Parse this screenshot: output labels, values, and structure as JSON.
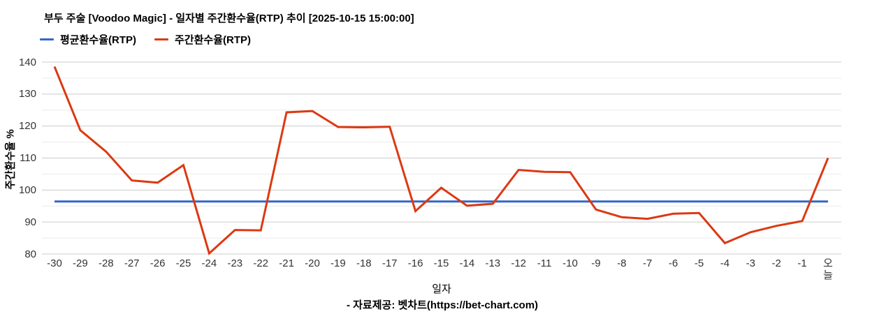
{
  "header": {
    "title": "부두 주술 [Voodoo Magic] - 일자별 주간환수율(RTP) 추이 [2025-10-15 15:00:00]"
  },
  "legend": {
    "items": [
      {
        "label": "평균환수율(RTP)",
        "color": "#3366cc"
      },
      {
        "label": "주간환수율(RTP)",
        "color": "#dc3912"
      }
    ]
  },
  "footer": {
    "credit": "- 자료제공: 벳차트(https://bet-chart.com)"
  },
  "colors": {
    "average_line": "#3366cc",
    "weekly_line": "#dc3912",
    "gridline_major": "#cccccc",
    "gridline_minor": "#ebebeb",
    "tick_text": "#333333"
  },
  "chart_data": {
    "type": "line",
    "title": "부두 주술 [Voodoo Magic] - 일자별 주간환수율(RTP) 추이 [2025-10-15 15:00:00]",
    "xlabel": "일자",
    "ylabel": "주간환수율 %",
    "ylim": [
      80,
      140
    ],
    "y_ticks": [
      80,
      90,
      100,
      110,
      120,
      130,
      140
    ],
    "grid": "horizontal major every 10, minor every 5",
    "legend_position": "top-left",
    "categories": [
      "-30",
      "-29",
      "-28",
      "-27",
      "-26",
      "-25",
      "-24",
      "-23",
      "-22",
      "-21",
      "-20",
      "-19",
      "-18",
      "-17",
      "-16",
      "-15",
      "-14",
      "-13",
      "-12",
      "-11",
      "-10",
      "-9",
      "-8",
      "-7",
      "-6",
      "-5",
      "-4",
      "-3",
      "-2",
      "-1",
      "오늘"
    ],
    "series": [
      {
        "name": "평균환수율(RTP)",
        "color": "#3366cc",
        "constant_value": 96.4
      },
      {
        "name": "주간환수율(RTP)",
        "color": "#dc3912",
        "values": [
          138.6,
          118.7,
          112.0,
          103.0,
          102.3,
          107.8,
          80.2,
          87.5,
          87.4,
          124.3,
          124.7,
          119.7,
          119.6,
          119.8,
          93.4,
          100.7,
          95.1,
          95.7,
          106.3,
          105.7,
          105.6,
          93.9,
          91.5,
          91.0,
          92.6,
          92.8,
          83.4,
          86.8,
          88.8,
          90.3,
          110.0
        ]
      }
    ]
  }
}
